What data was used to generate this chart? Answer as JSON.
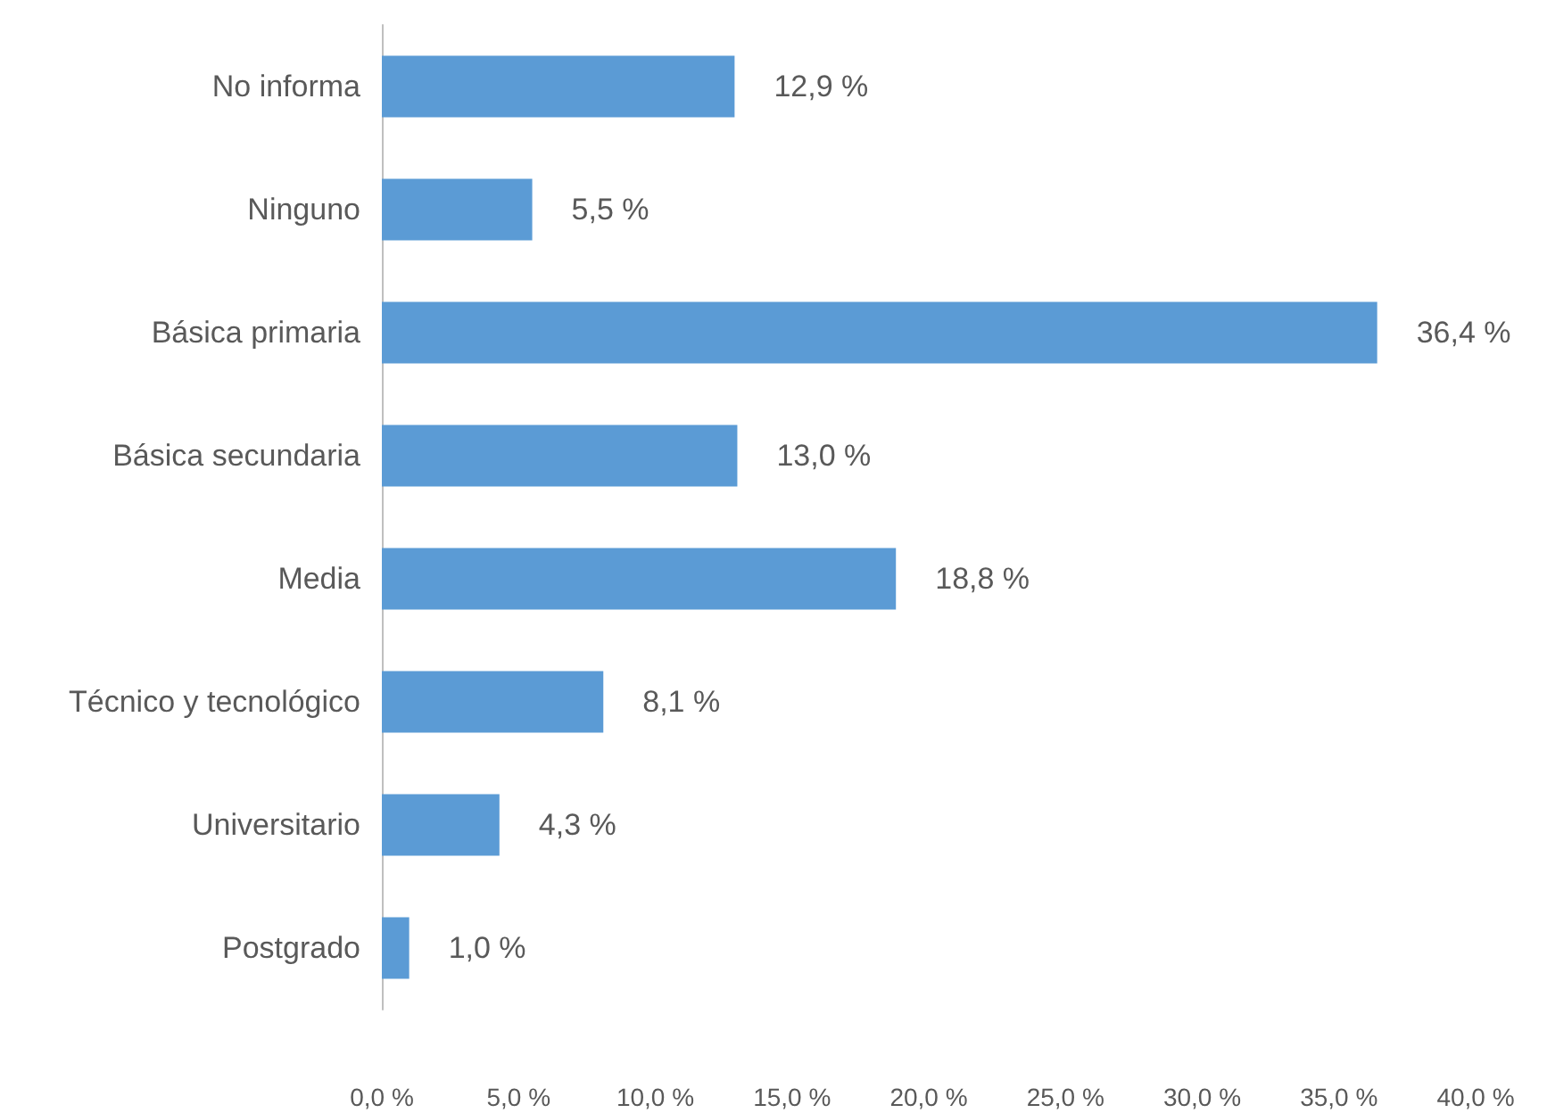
{
  "chart_data": {
    "type": "bar",
    "orientation": "horizontal",
    "categories": [
      "No informa",
      "Ninguno",
      "Básica primaria",
      "Básica secundaria",
      "Media",
      "Técnico y tecnológico",
      "Universitario",
      "Postgrado"
    ],
    "values": [
      12.9,
      5.5,
      36.4,
      13.0,
      18.8,
      8.1,
      4.3,
      1.0
    ],
    "value_labels": [
      "12,9 %",
      "5,5 %",
      "36,4 %",
      "13,0 %",
      "18,8 %",
      "8,1 %",
      "4,3 %",
      "1,0 %"
    ],
    "color": "#5b9bd5",
    "xlim": [
      0,
      40
    ],
    "xticks": [
      {
        "value": 0,
        "label": "0,0 %"
      },
      {
        "value": 5,
        "label": "5,0 %"
      },
      {
        "value": 10,
        "label": "10,0 %"
      },
      {
        "value": 15,
        "label": "15,0 %"
      },
      {
        "value": 20,
        "label": "20,0 %"
      },
      {
        "value": 25,
        "label": "25,0 %"
      },
      {
        "value": 30,
        "label": "30,0 %"
      },
      {
        "value": 35,
        "label": "35,0 %"
      },
      {
        "value": 40,
        "label": "40,0 %"
      }
    ],
    "grid": false
  }
}
